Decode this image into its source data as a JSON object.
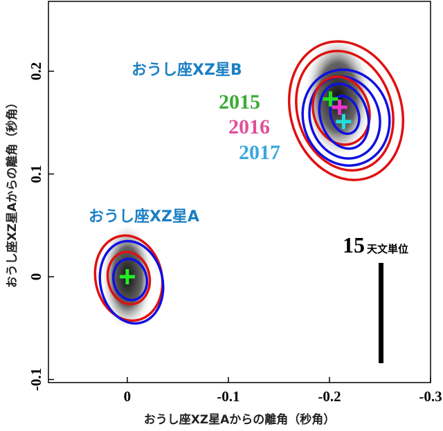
{
  "chart_data": {
    "type": "scatter",
    "xlabel": "おうし座XZ星Aからの離角（秒角）",
    "ylabel": "おうし座XZ星Aからの離角（秒角）",
    "xlim": [
      0.078,
      -0.3
    ],
    "ylim": [
      -0.103,
      0.268
    ],
    "xticks": [
      0,
      -0.1,
      -0.2,
      -0.3
    ],
    "yticks": [
      -0.1,
      0,
      0.1,
      0.2
    ],
    "series": [
      {
        "name": "おうし座XZ星A",
        "color": "#22ee22",
        "x": [
          0
        ],
        "values": [
          0
        ]
      },
      {
        "name": "2015",
        "color": "#22dd22",
        "x": [
          -0.201
        ],
        "values": [
          0.173
        ]
      },
      {
        "name": "2016",
        "color": "#ee33cc",
        "x": [
          -0.21
        ],
        "values": [
          0.165
        ]
      },
      {
        "name": "2017",
        "color": "#22dddd",
        "x": [
          -0.214
        ],
        "values": [
          0.151
        ]
      }
    ],
    "annotations": [
      "おうし座XZ星B"
    ],
    "scale_bar": {
      "number": "15",
      "unit": "天文単位"
    }
  }
}
